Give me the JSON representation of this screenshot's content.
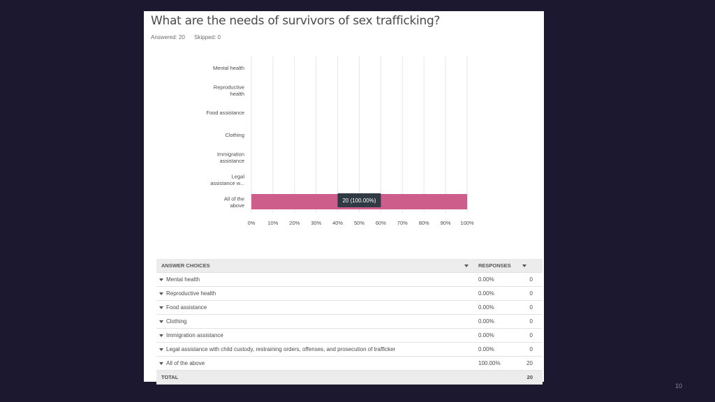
{
  "question": {
    "title": "What are the needs of survivors of sex trafficking?",
    "answered_label": "Answered: 20",
    "skipped_label": "Skipped: 0"
  },
  "chart_data": {
    "type": "bar",
    "orientation": "horizontal",
    "categories": [
      [
        "Mental health"
      ],
      [
        "Reproductive",
        "health"
      ],
      [
        "Food assistance"
      ],
      [
        "Clothing"
      ],
      [
        "Immigration",
        "assistance"
      ],
      [
        "Legal",
        "assistance w..."
      ],
      [
        "All of the",
        "above"
      ]
    ],
    "values": [
      0,
      0,
      0,
      0,
      0,
      0,
      100
    ],
    "xticks": [
      "0%",
      "10%",
      "20%",
      "30%",
      "40%",
      "50%",
      "60%",
      "70%",
      "80%",
      "90%",
      "100%"
    ],
    "xlim": [
      0,
      100
    ],
    "unit": "%",
    "tooltip": "20 (100.00%)",
    "bar_color": "#cd5e8c",
    "grid": true
  },
  "table": {
    "headers": {
      "choices": "ANSWER CHOICES",
      "responses": "RESPONSES"
    },
    "rows": [
      {
        "choice": "Mental health",
        "pct": "0.00%",
        "count": "0"
      },
      {
        "choice": "Reproductive health",
        "pct": "0.00%",
        "count": "0"
      },
      {
        "choice": "Food assistance",
        "pct": "0.00%",
        "count": "0"
      },
      {
        "choice": "Clothing",
        "pct": "0.00%",
        "count": "0"
      },
      {
        "choice": "Immigration assistance",
        "pct": "0.00%",
        "count": "0"
      },
      {
        "choice": "Legal assistance with child custody, restraining orders, offenses, and prosecution of trafficker",
        "pct": "0.00%",
        "count": "0"
      },
      {
        "choice": "All of the above",
        "pct": "100.00%",
        "count": "20"
      }
    ],
    "total_label": "TOTAL",
    "total_count": "20"
  },
  "page_number": "10"
}
